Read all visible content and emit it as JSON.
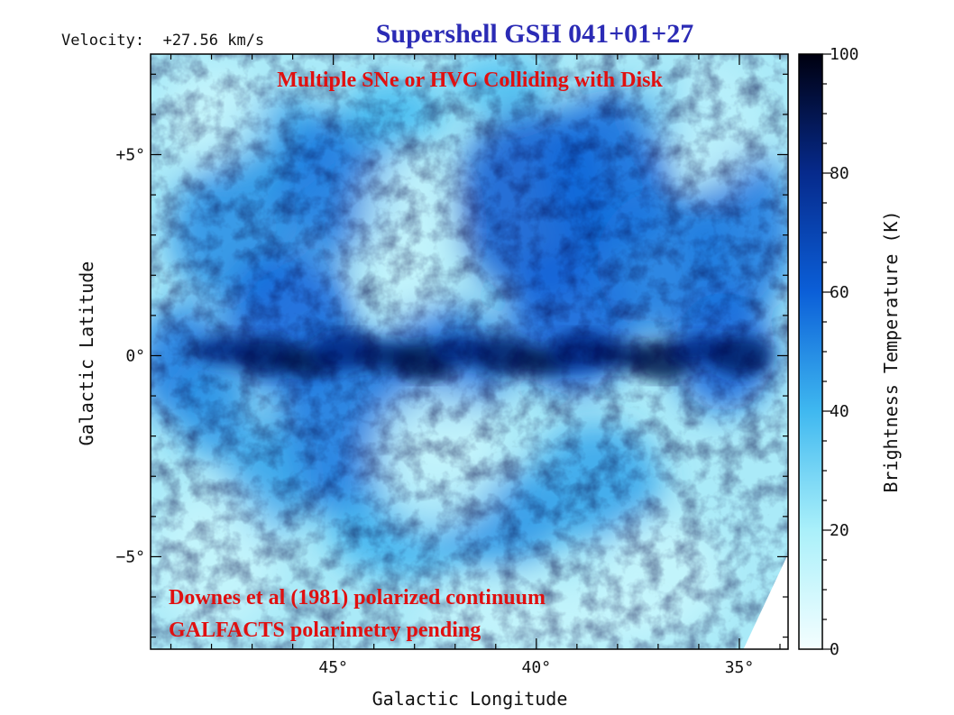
{
  "chart_data": {
    "type": "heatmap",
    "title": "Supershell GSH 041+01+27",
    "title_color": "#2b2bb5",
    "velocity_label": "Velocity:  +27.56 km/s",
    "xlabel": "Galactic Longitude",
    "ylabel": "Galactic Latitude",
    "xlim": [
      49.5,
      33.8
    ],
    "ylim": [
      -7.3,
      7.5
    ],
    "x_ticks": [
      {
        "value": 45,
        "label": "45°"
      },
      {
        "value": 40,
        "label": "40°"
      },
      {
        "value": 35,
        "label": "35°"
      }
    ],
    "y_ticks": [
      {
        "value": 5,
        "label": "+5°"
      },
      {
        "value": 0,
        "label": "0°"
      },
      {
        "value": -5,
        "label": "−5°"
      }
    ],
    "colorbar": {
      "label": "Brightness Temperature (K)",
      "range": [
        0,
        100
      ],
      "ticks": [
        {
          "value": 0,
          "label": "0"
        },
        {
          "value": 20,
          "label": "20"
        },
        {
          "value": 40,
          "label": "40"
        },
        {
          "value": 60,
          "label": "60"
        },
        {
          "value": 80,
          "label": "80"
        },
        {
          "value": 100,
          "label": "100"
        }
      ],
      "colors": [
        "#f4feff",
        "#aaf0fa",
        "#3fb8f0",
        "#0b5fd8",
        "#062a8c",
        "#000010"
      ]
    },
    "annotations": [
      {
        "text": "Multiple SNe or HVC Colliding with Disk",
        "color": "#e01010"
      },
      {
        "text": "Downes et al (1981) polarized continuum",
        "color": "#e01010"
      },
      {
        "text": "GALFACTS polarimetry pending",
        "color": "#e01010"
      }
    ]
  }
}
